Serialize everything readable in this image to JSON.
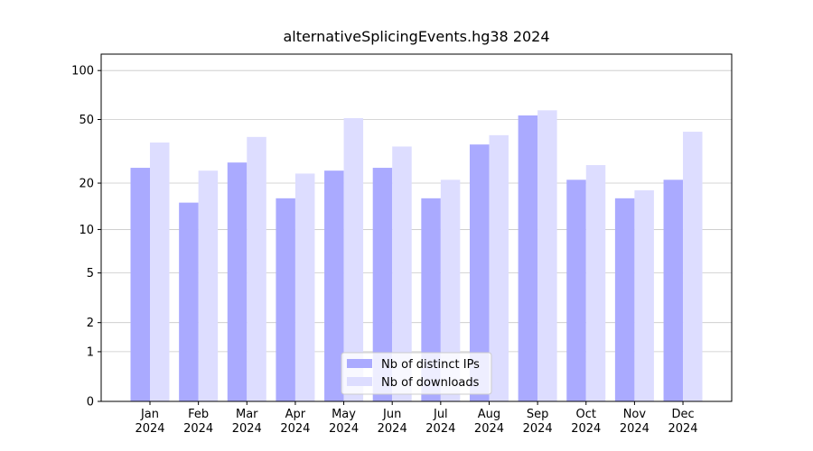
{
  "chart_data": {
    "type": "bar",
    "title": "alternativeSplicingEvents.hg38 2024",
    "categories": [
      "Jan\n2024",
      "Feb\n2024",
      "Mar\n2024",
      "Apr\n2024",
      "May\n2024",
      "Jun\n2024",
      "Jul\n2024",
      "Aug\n2024",
      "Sep\n2024",
      "Oct\n2024",
      "Nov\n2024",
      "Dec\n2024"
    ],
    "series": [
      {
        "name": "Nb of distinct IPs",
        "color": "#aaaaff",
        "values": [
          25,
          15,
          27,
          16,
          24,
          25,
          16,
          35,
          53,
          21,
          16,
          21
        ]
      },
      {
        "name": "Nb of downloads",
        "color": "#ddddff",
        "values": [
          36,
          24,
          39,
          23,
          51,
          34,
          21,
          40,
          57,
          26,
          18,
          42
        ]
      }
    ],
    "yscale": "log1p",
    "ylim": [
      0,
      126
    ],
    "yticks": [
      0,
      1,
      2,
      5,
      10,
      20,
      50,
      100
    ],
    "grid": true,
    "legend": "lower center"
  }
}
